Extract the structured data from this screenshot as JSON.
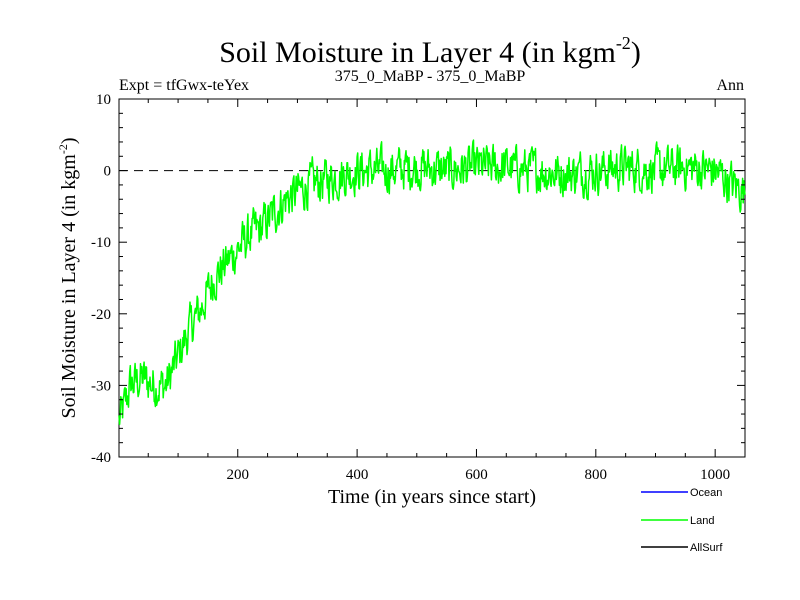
{
  "chart_data": {
    "type": "line",
    "title": "Soil Moisture in Layer 4 (in kgm",
    "title_sup": "-2",
    "title_end": ")",
    "subtitle_left": "Expt = tfGwx-teYex",
    "subtitle_center": "375_0_MaBP - 375_0_MaBP",
    "subtitle_right": "Ann",
    "xlabel": "Time (in years since start)",
    "ylabel": "Soil Moisture in Layer 4 (in kgm",
    "ylabel_sup": "-2",
    "ylabel_end": ")",
    "xlim": [
      1,
      1050
    ],
    "ylim": [
      -40,
      10
    ],
    "xticks": [
      200,
      400,
      600,
      800,
      1000
    ],
    "yticks": [
      -40,
      -30,
      -20,
      -10,
      0,
      10
    ],
    "reference_line": 0,
    "series": [
      {
        "name": "Ocean",
        "color": "#0000ff",
        "values": []
      },
      {
        "name": "Land",
        "color": "#00ff00",
        "description_values": "annual values, years 1-1050",
        "anchors_x": [
          1,
          10,
          20,
          40,
          60,
          80,
          100,
          120,
          140,
          160,
          180,
          200,
          220,
          240,
          260,
          280,
          300,
          320,
          340,
          360,
          380,
          400,
          450,
          500,
          550,
          600,
          650,
          700,
          750,
          800,
          850,
          900,
          950,
          1000,
          1030,
          1050
        ],
        "anchors_y": [
          -35,
          -33,
          -30,
          -29,
          -30,
          -30,
          -26,
          -22,
          -19,
          -15,
          -13,
          -11,
          -9,
          -8,
          -6,
          -4,
          -3,
          -2,
          -1.5,
          -1,
          -0.5,
          0,
          0,
          0.5,
          0,
          0.5,
          0.5,
          0,
          -0.5,
          0,
          0.5,
          0,
          0.5,
          0,
          -2,
          -3
        ],
        "noise_amplitude": 2.6
      },
      {
        "name": "AllSurf",
        "color": "#000000",
        "values": []
      }
    ]
  }
}
